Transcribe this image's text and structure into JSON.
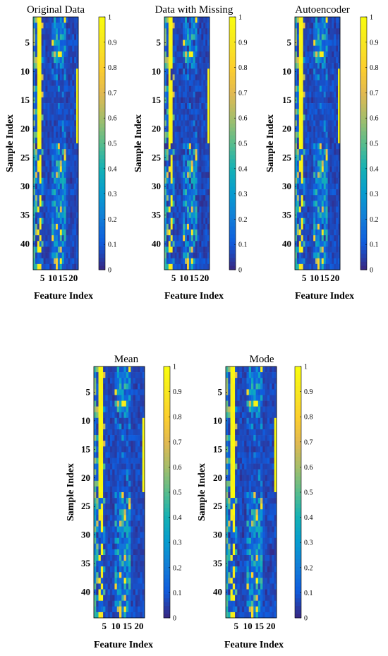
{
  "figure": {
    "xlabel": "Feature Index",
    "ylabel": "Sample Index"
  },
  "colorbar": {
    "ticks": [
      "0",
      "0.1",
      "0.2",
      "0.3",
      "0.4",
      "0.5",
      "0.6",
      "0.7",
      "0.8",
      "0.9",
      "1"
    ]
  },
  "chart_data": [
    {
      "type": "heatmap",
      "title": "Original Data",
      "xlabel": "Feature Index",
      "ylabel": "Sample Index",
      "x_ticks": [
        "5",
        "10",
        "15",
        "20"
      ],
      "y_ticks": [
        "5",
        "10",
        "15",
        "20",
        "25",
        "30",
        "35",
        "40"
      ],
      "n_features": 22,
      "n_samples": 44,
      "colormap": "parula",
      "clim": [
        0,
        1
      ],
      "missing": false
    },
    {
      "type": "heatmap",
      "title": "Data with Missing",
      "xlabel": "Feature Index",
      "ylabel": "Sample Index",
      "x_ticks": [
        "5",
        "10",
        "15",
        "20"
      ],
      "y_ticks": [
        "5",
        "10",
        "15",
        "20",
        "25",
        "30",
        "35",
        "40"
      ],
      "n_features": 22,
      "n_samples": 44,
      "colormap": "parula",
      "clim": [
        0,
        1
      ],
      "missing": true
    },
    {
      "type": "heatmap",
      "title": "Autoencoder",
      "xlabel": "Feature Index",
      "ylabel": "Sample Index",
      "x_ticks": [
        "5",
        "10",
        "15",
        "20"
      ],
      "y_ticks": [
        "5",
        "10",
        "15",
        "20",
        "25",
        "30",
        "35",
        "40"
      ],
      "n_features": 22,
      "n_samples": 44,
      "colormap": "parula",
      "clim": [
        0,
        1
      ],
      "missing": false
    },
    {
      "type": "heatmap",
      "title": "Mean",
      "xlabel": "Feature Index",
      "ylabel": "Sample Index",
      "x_ticks": [
        "5",
        "10",
        "15",
        "20"
      ],
      "y_ticks": [
        "5",
        "10",
        "15",
        "20",
        "25",
        "30",
        "35",
        "40"
      ],
      "n_features": 22,
      "n_samples": 44,
      "colormap": "parula",
      "clim": [
        0,
        1
      ],
      "missing": false
    },
    {
      "type": "heatmap",
      "title": "Mode",
      "xlabel": "Feature Index",
      "ylabel": "Sample Index",
      "x_ticks": [
        "5",
        "10",
        "15",
        "20"
      ],
      "y_ticks": [
        "5",
        "10",
        "15",
        "20",
        "25",
        "30",
        "35",
        "40"
      ],
      "n_features": 22,
      "n_samples": 44,
      "colormap": "parula",
      "clim": [
        0,
        1
      ],
      "missing": false
    }
  ]
}
